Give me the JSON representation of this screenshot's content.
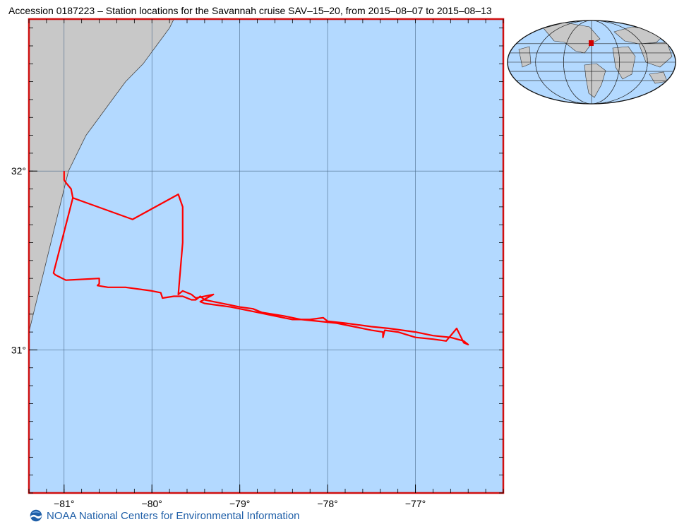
{
  "title": "Accession 0187223 – Station locations for the Savannah cruise SAV–15–20, from 2015–08–07 to 2015–08–13",
  "footer": {
    "text": "NOAA National Centers for Environmental Information",
    "logo": "noaa-logo-icon"
  },
  "colors": {
    "ocean": "#b3d9ff",
    "land": "#c8c8c8",
    "frame": "#d01010",
    "track": "#ff0000",
    "grid": "#4a6a8a"
  },
  "map": {
    "lon_range": [
      -81.4,
      -76.0
    ],
    "lat_range": [
      30.2,
      32.85
    ],
    "lon_ticks": [
      {
        "value": -81,
        "label": "−81°"
      },
      {
        "value": -80,
        "label": "−80°"
      },
      {
        "value": -79,
        "label": "−79°"
      },
      {
        "value": -78,
        "label": "−78°"
      },
      {
        "value": -77,
        "label": "−77°"
      }
    ],
    "lat_ticks": [
      {
        "value": 32,
        "label": "32°"
      },
      {
        "value": 31,
        "label": "31°"
      }
    ],
    "track": [
      [
        -81.0,
        32.0
      ],
      [
        -81.0,
        31.95
      ],
      [
        -80.97,
        31.93
      ],
      [
        -80.92,
        31.9
      ],
      [
        -80.9,
        31.85
      ],
      [
        -81.12,
        31.43
      ],
      [
        -81.1,
        31.42
      ],
      [
        -80.98,
        31.39
      ],
      [
        -80.6,
        31.4
      ],
      [
        -80.6,
        31.37
      ],
      [
        -80.62,
        31.36
      ],
      [
        -80.5,
        31.35
      ],
      [
        -80.3,
        31.35
      ],
      [
        -80.0,
        31.33
      ],
      [
        -79.9,
        31.32
      ],
      [
        -79.88,
        31.29
      ],
      [
        -79.75,
        31.3
      ],
      [
        -79.65,
        31.3
      ],
      [
        -79.55,
        31.28
      ],
      [
        -79.5,
        31.28
      ],
      [
        -79.45,
        31.3
      ],
      [
        -79.4,
        31.28
      ],
      [
        -79.3,
        31.27
      ],
      [
        -79.1,
        31.25
      ],
      [
        -79.0,
        31.24
      ],
      [
        -78.85,
        31.23
      ],
      [
        -78.75,
        31.21
      ],
      [
        -78.5,
        31.19
      ],
      [
        -78.3,
        31.17
      ],
      [
        -78.1,
        31.16
      ],
      [
        -77.9,
        31.15
      ],
      [
        -77.7,
        31.13
      ],
      [
        -77.5,
        31.11
      ],
      [
        -77.37,
        31.1
      ],
      [
        -77.37,
        31.07
      ],
      [
        -77.35,
        31.11
      ],
      [
        -77.2,
        31.1
      ],
      [
        -77.0,
        31.07
      ],
      [
        -76.8,
        31.06
      ],
      [
        -76.65,
        31.05
      ],
      [
        -76.53,
        31.12
      ],
      [
        -76.45,
        31.04
      ],
      [
        -76.4,
        31.03
      ],
      [
        -76.45,
        31.05
      ],
      [
        -76.6,
        31.07
      ],
      [
        -76.8,
        31.08
      ],
      [
        -77.0,
        31.1
      ],
      [
        -77.3,
        31.12
      ],
      [
        -77.5,
        31.13
      ],
      [
        -77.8,
        31.15
      ],
      [
        -78.0,
        31.16
      ],
      [
        -78.05,
        31.18
      ],
      [
        -78.2,
        31.17
      ],
      [
        -78.4,
        31.17
      ],
      [
        -78.5,
        31.18
      ],
      [
        -78.7,
        31.2
      ],
      [
        -78.9,
        31.22
      ],
      [
        -79.1,
        31.24
      ],
      [
        -79.25,
        31.25
      ],
      [
        -79.4,
        31.26
      ],
      [
        -79.45,
        31.27
      ],
      [
        -79.3,
        31.31
      ],
      [
        -79.5,
        31.29
      ],
      [
        -79.55,
        31.31
      ],
      [
        -79.65,
        31.33
      ],
      [
        -79.7,
        31.31
      ],
      [
        -79.65,
        31.6
      ],
      [
        -79.65,
        31.8
      ],
      [
        -79.7,
        31.87
      ],
      [
        -80.22,
        31.73
      ],
      [
        -80.9,
        31.85
      ]
    ],
    "coast": [
      [
        -81.4,
        31.1
      ],
      [
        -81.35,
        31.2
      ],
      [
        -81.3,
        31.3
      ],
      [
        -81.25,
        31.4
      ],
      [
        -81.2,
        31.5
      ],
      [
        -81.15,
        31.6
      ],
      [
        -81.1,
        31.7
      ],
      [
        -81.05,
        31.8
      ],
      [
        -81.0,
        31.9
      ],
      [
        -80.95,
        32.0
      ],
      [
        -80.85,
        32.1
      ],
      [
        -80.75,
        32.2
      ],
      [
        -80.6,
        32.3
      ],
      [
        -80.45,
        32.4
      ],
      [
        -80.3,
        32.5
      ],
      [
        -80.1,
        32.6
      ],
      [
        -79.95,
        32.7
      ],
      [
        -79.8,
        32.8
      ],
      [
        -79.75,
        32.85
      ]
    ]
  },
  "inset": {
    "grid_lines": [],
    "marker": "cruise-area-marker"
  }
}
